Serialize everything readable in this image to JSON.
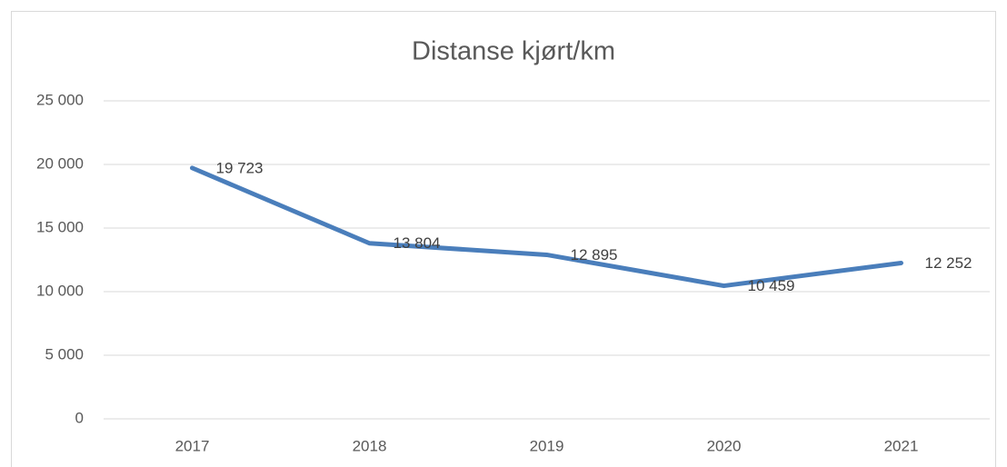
{
  "chart_data": {
    "type": "line",
    "title": "Distanse kjørt/km",
    "categories": [
      "2017",
      "2018",
      "2019",
      "2020",
      "2021"
    ],
    "series": [
      {
        "name": "Distanse kjørt/km",
        "color": "#4a7ebb",
        "values": [
          19723,
          13804,
          12895,
          10459,
          12252
        ],
        "value_labels": [
          "19 723",
          "13 804",
          "12 895",
          "10 459",
          "12 252"
        ]
      }
    ],
    "ylim": [
      0,
      25000
    ],
    "yticks": [
      0,
      {
        "value": 5000,
        "label": "5 000"
      },
      {
        "value": 10000,
        "label": "10 000"
      },
      {
        "value": 15000,
        "label": "15 000"
      },
      {
        "value": 20000,
        "label": "20 000"
      },
      {
        "value": 25000,
        "label": "25 000"
      }
    ],
    "grid": true
  }
}
